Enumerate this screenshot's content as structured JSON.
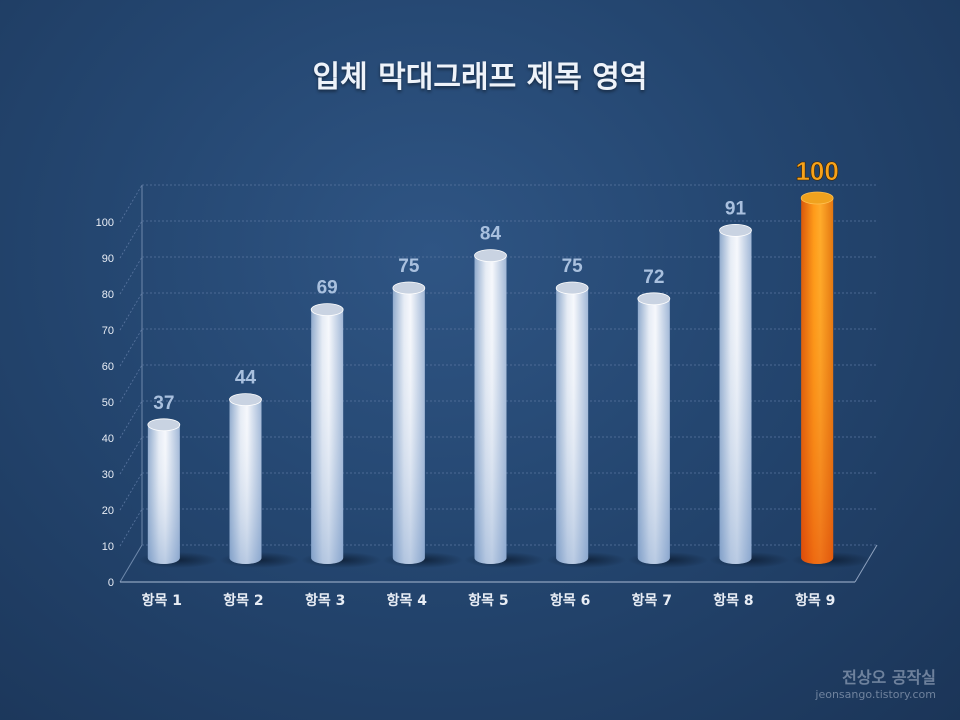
{
  "title": "입체 막대그래프 제목 영역",
  "watermark": {
    "name": "전상오 공작실",
    "url": "jeonsango.tistory.com"
  },
  "colors": {
    "bar_default": "#dfe6f2",
    "bar_highlight": "#f59a12",
    "value_label": "#a9c0de",
    "value_label_highlight": "#f7a21a",
    "axis_text": "#e8edf5"
  },
  "chart_data": {
    "type": "bar",
    "style": "3d-cylinder",
    "title": "입체 막대그래프 제목 영역",
    "categories": [
      "항목 1",
      "항목 2",
      "항목 3",
      "항목 4",
      "항목 5",
      "항목 6",
      "항목 7",
      "항목 8",
      "항목 9"
    ],
    "values": [
      37,
      44,
      69,
      75,
      84,
      75,
      72,
      91,
      100
    ],
    "highlight_index": 8,
    "ylim": [
      0,
      100
    ],
    "yticks": [
      0,
      10,
      20,
      30,
      40,
      50,
      60,
      70,
      80,
      90,
      100
    ],
    "grid": true,
    "legend": "none",
    "data_labels": true
  }
}
